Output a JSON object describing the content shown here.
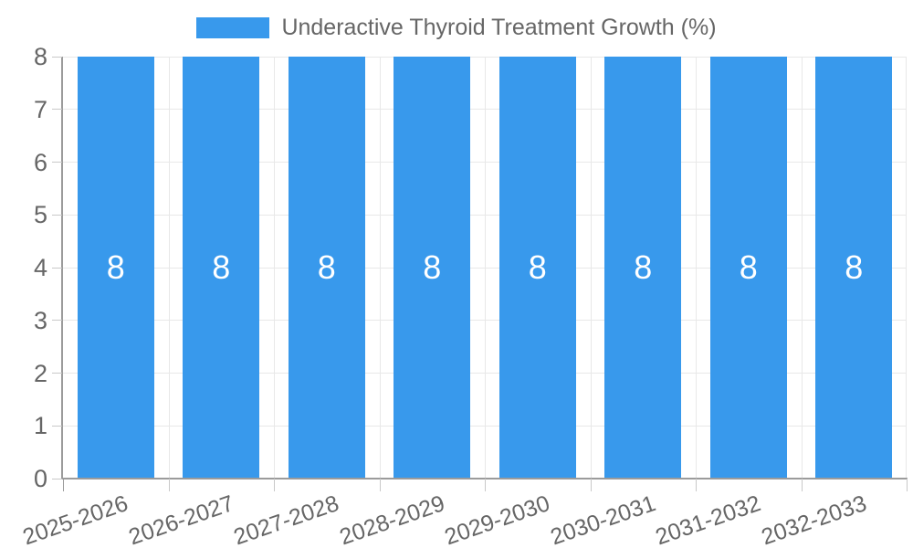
{
  "legend": {
    "label": "Underactive Thyroid Treatment Growth (%)"
  },
  "chart_data": {
    "type": "bar",
    "title": "Underactive Thyroid Treatment Growth (%)",
    "categories": [
      "2025-2026",
      "2026-2027",
      "2027-2028",
      "2028-2029",
      "2029-2030",
      "2030-2031",
      "2031-2032",
      "2032-2033"
    ],
    "values": [
      8,
      8,
      8,
      8,
      8,
      8,
      8,
      8
    ],
    "data_labels": [
      "8",
      "8",
      "8",
      "8",
      "8",
      "8",
      "8",
      "8"
    ],
    "yticks": [
      0,
      1,
      2,
      3,
      4,
      5,
      6,
      7,
      8
    ],
    "ylim": [
      0,
      8
    ],
    "xlabel": "",
    "ylabel": "",
    "grid": true,
    "legend_position": "top",
    "colors": {
      "bar": "#3899EC",
      "bar_label": "#FFFFFF",
      "axis_text": "#666666",
      "grid_line": "#E8E8E8",
      "axis_line": "#9B9B9B",
      "tick_mark": "#C9C9C9",
      "background": "#FFFFFF"
    }
  }
}
